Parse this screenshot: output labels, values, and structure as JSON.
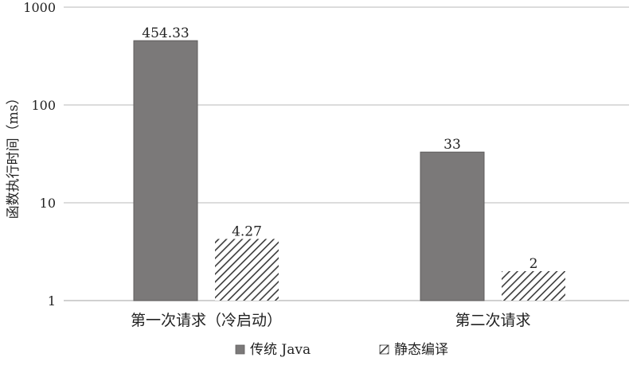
{
  "chart_data": {
    "type": "bar",
    "y_scale": "log",
    "ylim": [
      1,
      1000
    ],
    "yticks": [
      "1",
      "10",
      "100",
      "1000"
    ],
    "ylabel": "函数执行时间（ms）",
    "xlabel": "",
    "title": "",
    "categories": [
      "第一次请求（冷启动）",
      "第二次请求"
    ],
    "series": [
      {
        "name": "传统 Java",
        "values": [
          454.33,
          33
        ],
        "labels": [
          "454.33",
          "33"
        ],
        "color": "#7b7979",
        "pattern": "solid"
      },
      {
        "name": "静态编译",
        "values": [
          4.27,
          2
        ],
        "labels": [
          "4.27",
          "2"
        ],
        "color": "#3a3a3a",
        "pattern": "diagonal-hatch"
      }
    ],
    "grid": true,
    "legend_position": "bottom"
  }
}
